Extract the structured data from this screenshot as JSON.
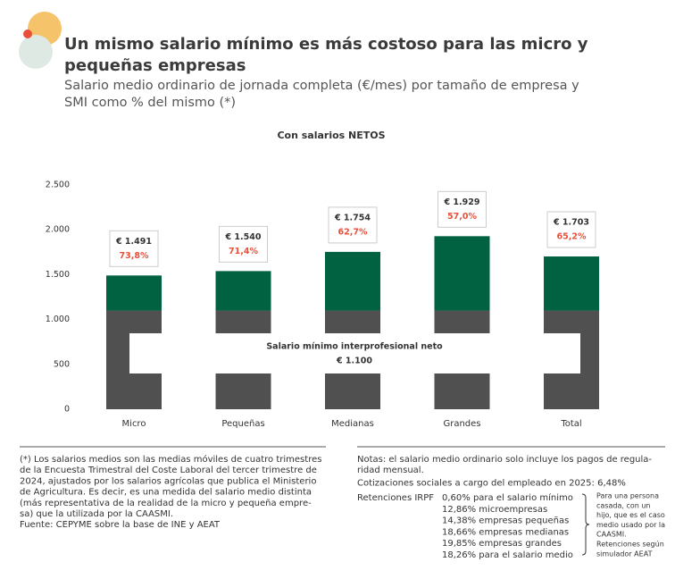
{
  "chart_data": {
    "type": "stacked_bar",
    "title": "Un mismo salario mínimo es más costoso para las micro y pequeñas empresas",
    "subtitle": "Salario medio ordinario de jornada completa (€/mes) por tamaño de empresa y SMI como % del mismo (*)",
    "chart_title": "Con salarios NETOS",
    "categories": [
      "Micro",
      "Pequeñas",
      "Medianas",
      "Grandes",
      "Total"
    ],
    "series": [
      {
        "name": "Salario mínimo interprofesional neto",
        "color": "#505050",
        "values": [
          1100,
          1100,
          1100,
          1100,
          1100
        ],
        "value_label": "€ 1.100"
      },
      {
        "color": "#006241",
        "values": [
          391,
          440,
          654,
          829,
          603
        ]
      }
    ],
    "totals": {
      "values": [
        1491,
        1540,
        1754,
        1929,
        1703
      ],
      "value_labels": [
        "€ 1.491",
        "€ 1.540",
        "€ 1.754",
        "€ 1.929",
        "€ 1.703"
      ]
    },
    "smi_share": {
      "color": "#e8503a",
      "values": [
        73.8,
        71.4,
        62.7,
        57.0,
        65.2
      ],
      "value_labels": [
        "73,8%",
        "71,4%",
        "62,7%",
        "57,0%",
        "65,2%"
      ]
    },
    "ylim": [
      0,
      2500
    ],
    "yticks": [
      0,
      500,
      {
        "value": 1000,
        "label": "1.000"
      },
      {
        "value": 1500,
        "label": "1.500"
      },
      {
        "value": 2000,
        "label": "2.000"
      },
      {
        "value": 2500,
        "label": "2.500"
      }
    ]
  },
  "footnote": [
    "(*) Los salarios medios son las medias móviles de cuatro trimestres",
    "de la Encuesta Trimestral del Coste Laboral del tercer trimestre de",
    "2024, ajustados por los salarios agrícolas que publica el Ministerio",
    "de Agricultura. Es decir, es una medida del salario medio distinta",
    "(más representativa de la realidad de la micro y pequeña empre-",
    "sa) que la utilizada por la CAASMI.",
    "Fuente: CEPYME sobre la base de INE y AEAT"
  ],
  "notes": [
    "Notas: el salario medio ordinario solo incluye los pagos de regula-",
    "ridad mensual.",
    "Cotizaciones sociales a cargo del empleado en 2025: 6,48%"
  ],
  "irpf": {
    "label": "Retenciones IRPF",
    "items": [
      "0,60% para el salario mínimo",
      "12,86% microempresas",
      "14,38% empresas pequeñas",
      "18,66% empresas medianas",
      "19,85% empresas grandes",
      "18,26% para el salario medio"
    ],
    "note": [
      "Para una persona",
      "casada, con un",
      "hijo, que es el caso",
      "medio usado por la",
      "CAASMI.",
      "Retenciones según",
      "simulador AEAT"
    ]
  }
}
